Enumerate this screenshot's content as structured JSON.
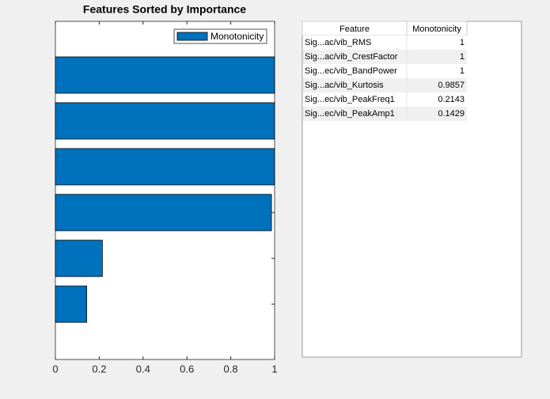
{
  "chart_data": {
    "type": "barh",
    "title": "Features Sorted by Importance",
    "categories": [
      null,
      null,
      null,
      null,
      null,
      null
    ],
    "series": [
      {
        "name": "Monotonicity",
        "color": "#0072bd",
        "values": [
          1,
          1,
          1,
          0.9857,
          0.2143,
          0.1429
        ]
      }
    ],
    "xlim": [
      0,
      1
    ],
    "xticks": [
      0,
      0.2,
      0.4,
      0.6,
      0.8,
      1
    ],
    "legend": "northeast"
  },
  "table": {
    "headers": [
      "Feature",
      "Monotonicity"
    ],
    "rows": [
      [
        "Sig...ac/vib_RMS",
        1
      ],
      [
        "Sig...ac/vib_CrestFactor",
        1
      ],
      [
        "Sig...ec/vib_BandPower",
        1
      ],
      [
        "Sig...ac/vib_Kurtosis",
        0.9857
      ],
      [
        "Sig...ec/vib_PeakFreq1",
        0.2143
      ],
      [
        "Sig...ec/vib_PeakAmp1",
        0.1429
      ]
    ]
  }
}
